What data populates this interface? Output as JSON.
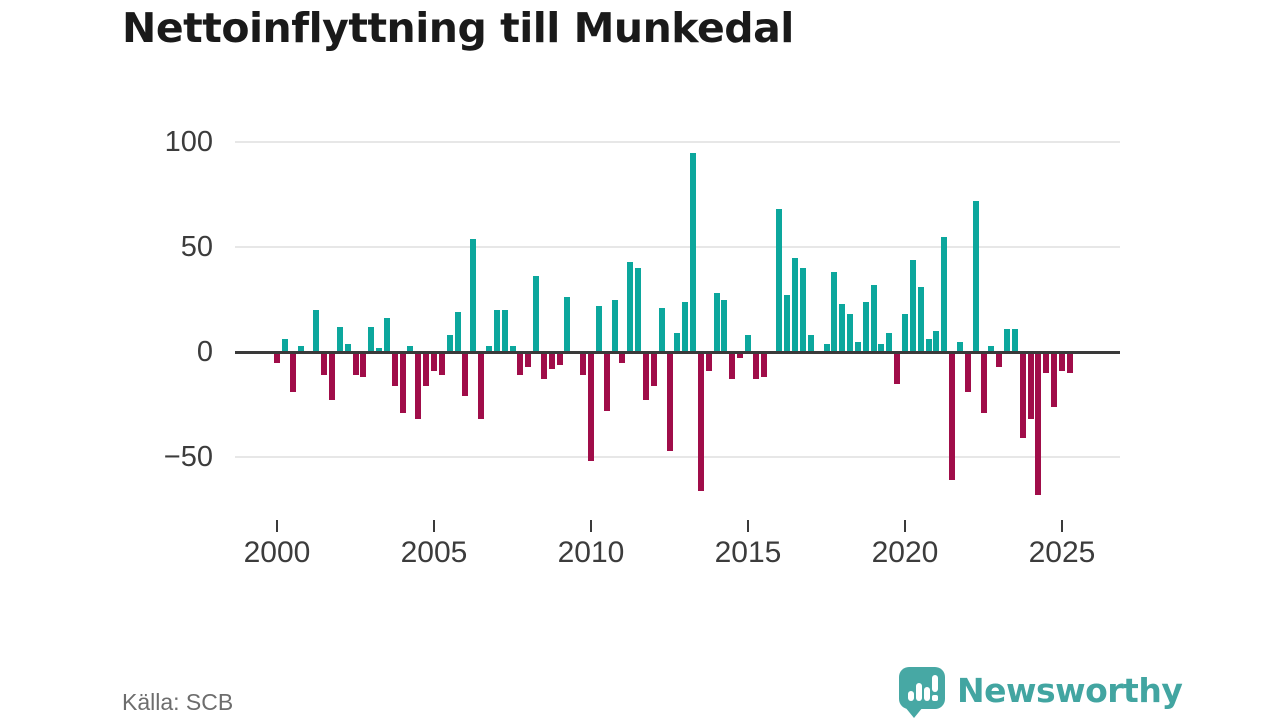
{
  "header": {
    "title": "Nettoinflyttning till Munkedal"
  },
  "footer": {
    "source": "Källa: SCB",
    "brand": "Newsworthy",
    "logo_icon": "speech-bubble-bar-chart-exclamation"
  },
  "chart_data": {
    "type": "bar",
    "title": "Nettoinflyttning till Munkedal",
    "xlabel": "",
    "ylabel": "",
    "frequency": "quarterly",
    "start_period": "2000-Q1",
    "end_period": "2025-Q2",
    "grid": "horizontal",
    "legend": "none",
    "ylim": [
      -75,
      105
    ],
    "y_tick_labels": [
      "100",
      "50",
      "0",
      "−50"
    ],
    "y_tick_values": [
      100,
      50,
      0,
      -50
    ],
    "x_tick_labels": [
      "2000",
      "2005",
      "2010",
      "2015",
      "2020",
      "2025"
    ],
    "x_tick_years": [
      2000,
      2005,
      2010,
      2015,
      2020,
      2025
    ],
    "colors": {
      "positive": "#0ca79d",
      "negative": "#a00d49",
      "zero_axis": "#3a3a3a",
      "gridline": "#e7e7e7",
      "brand_teal": "#42a5a1"
    },
    "series_name": "Nettoinflyttning per kvartal",
    "years": [
      {
        "year": 2000,
        "quarters": [
          -5,
          6,
          -19,
          3
        ]
      },
      {
        "year": 2001,
        "quarters": [
          0,
          20,
          -11,
          -23
        ]
      },
      {
        "year": 2002,
        "quarters": [
          12,
          4,
          -11,
          -12
        ]
      },
      {
        "year": 2003,
        "quarters": [
          12,
          2,
          16,
          -16
        ]
      },
      {
        "year": 2004,
        "quarters": [
          -29,
          3,
          -32,
          -16
        ]
      },
      {
        "year": 2005,
        "quarters": [
          -9,
          -11,
          8,
          19
        ]
      },
      {
        "year": 2006,
        "quarters": [
          -21,
          54,
          -32,
          3
        ]
      },
      {
        "year": 2007,
        "quarters": [
          20,
          20,
          3,
          -11
        ]
      },
      {
        "year": 2008,
        "quarters": [
          -7,
          36,
          -13,
          -8
        ]
      },
      {
        "year": 2009,
        "quarters": [
          -6,
          26,
          0,
          -11
        ]
      },
      {
        "year": 2010,
        "quarters": [
          -52,
          22,
          -28,
          25
        ]
      },
      {
        "year": 2011,
        "quarters": [
          -5,
          43,
          40,
          -23
        ]
      },
      {
        "year": 2012,
        "quarters": [
          -16,
          21,
          -47,
          9
        ]
      },
      {
        "year": 2013,
        "quarters": [
          24,
          95,
          -66,
          -9
        ]
      },
      {
        "year": 2014,
        "quarters": [
          28,
          25,
          -13,
          -3
        ]
      },
      {
        "year": 2015,
        "quarters": [
          8,
          -13,
          -12,
          0
        ]
      },
      {
        "year": 2016,
        "quarters": [
          68,
          27,
          45,
          40
        ]
      },
      {
        "year": 2017,
        "quarters": [
          8,
          0,
          4,
          38
        ]
      },
      {
        "year": 2018,
        "quarters": [
          23,
          18,
          5,
          24
        ]
      },
      {
        "year": 2019,
        "quarters": [
          32,
          4,
          9,
          -15
        ]
      },
      {
        "year": 2020,
        "quarters": [
          18,
          44,
          31,
          6
        ]
      },
      {
        "year": 2021,
        "quarters": [
          10,
          55,
          -61,
          5
        ]
      },
      {
        "year": 2022,
        "quarters": [
          -19,
          72,
          -29,
          3
        ]
      },
      {
        "year": 2023,
        "quarters": [
          -7,
          11,
          11,
          -41
        ]
      },
      {
        "year": 2024,
        "quarters": [
          -32,
          -68,
          -10,
          -26
        ]
      },
      {
        "year": 2025,
        "quarters": [
          -9,
          -10
        ]
      }
    ]
  }
}
